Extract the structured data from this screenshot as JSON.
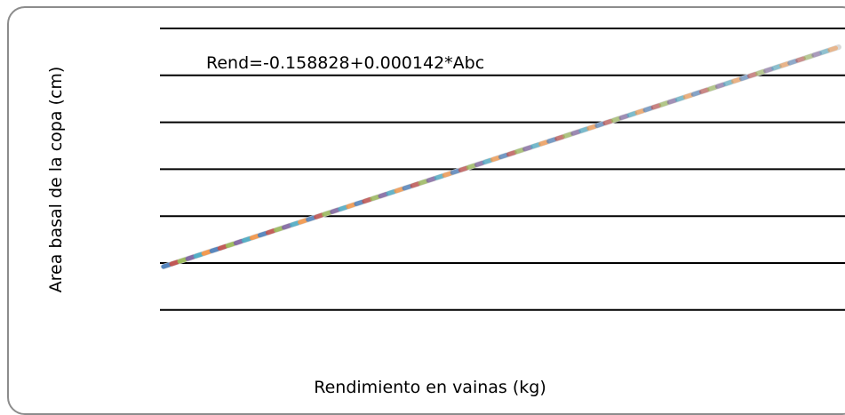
{
  "chart_data": {
    "type": "line",
    "title": "",
    "xlabel": "Rendimiento en vainas (kg)",
    "ylabel": "Area basal de la copa (cm)",
    "annotation": "Rend=-0.158828+0.000142*Abc",
    "gridlines": 7,
    "grid": true,
    "legend": "none",
    "series": [
      {
        "line_style": "dashed-multicolor",
        "x": [
          0,
          1
        ],
        "y": [
          0,
          1
        ],
        "colors": [
          "#4e81bd",
          "#c0504d",
          "#9bbb59",
          "#8064a2",
          "#4bacc6",
          "#f79646"
        ]
      }
    ]
  },
  "colors": {
    "frame": "#8c8c8c",
    "grid": "#000000",
    "text": "#000000"
  }
}
